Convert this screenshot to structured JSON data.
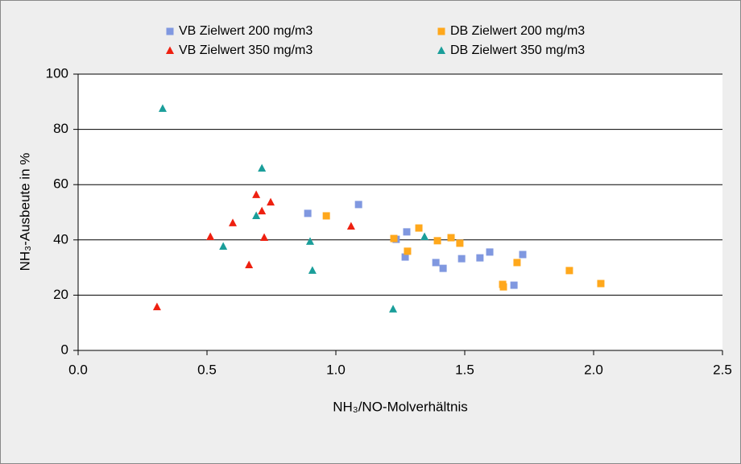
{
  "chart_data": {
    "type": "scatter",
    "xlabel": "NH₃/NO-Molverhältnis",
    "ylabel": "NH₃-Ausbeute in %",
    "xlim": [
      0,
      2.5
    ],
    "xticks": [
      {
        "value": 0,
        "label": "0.0"
      },
      0.5,
      {
        "value": 1,
        "label": "1.0"
      },
      1.5,
      {
        "value": 2,
        "label": "2.0"
      },
      2.5
    ],
    "ylim": [
      0,
      100
    ],
    "yticks": [
      0,
      20,
      40,
      60,
      80,
      100
    ],
    "grid": true,
    "legend": "top",
    "series": [
      {
        "name": "VB Zielwert 200 mg/m3",
        "color": "#8098e0",
        "marker": "square",
        "x": [
          0.891,
          1.088,
          1.234,
          1.275,
          1.269,
          1.388,
          1.416,
          1.488,
          1.559,
          1.597,
          1.691,
          1.725
        ],
        "values": [
          49.6,
          52.8,
          40.2,
          42.9,
          33.8,
          31.8,
          29.7,
          33.2,
          33.5,
          35.6,
          23.6,
          34.7
        ]
      },
      {
        "name": "DB Zielwert 200 mg/m3",
        "color": "#ffa81c",
        "marker": "square",
        "x": [
          0.963,
          1.225,
          1.278,
          1.322,
          1.394,
          1.447,
          1.481,
          1.647,
          1.65,
          1.703,
          1.906,
          2.028
        ],
        "values": [
          48.7,
          40.5,
          35.9,
          44.3,
          39.7,
          40.8,
          38.8,
          23.9,
          23.0,
          31.8,
          28.9,
          24.2
        ]
      },
      {
        "name": "VB Zielwert 350 mg/m3",
        "color": "#ee2010",
        "marker": "triangle",
        "x": [
          0.306,
          0.513,
          0.6,
          0.663,
          0.691,
          0.713,
          0.722,
          0.747,
          1.059
        ],
        "values": [
          15.7,
          41.1,
          46.1,
          30.9,
          56.3,
          50.4,
          40.8,
          53.6,
          44.9
        ]
      },
      {
        "name": "DB Zielwert 350 mg/m3",
        "color": "#1a9e9a",
        "marker": "triangle",
        "x": [
          0.328,
          0.563,
          0.691,
          0.713,
          0.909,
          0.9,
          1.222,
          1.344
        ],
        "values": [
          87.5,
          37.6,
          48.7,
          65.9,
          28.9,
          39.4,
          14.9,
          41.1
        ]
      }
    ]
  }
}
